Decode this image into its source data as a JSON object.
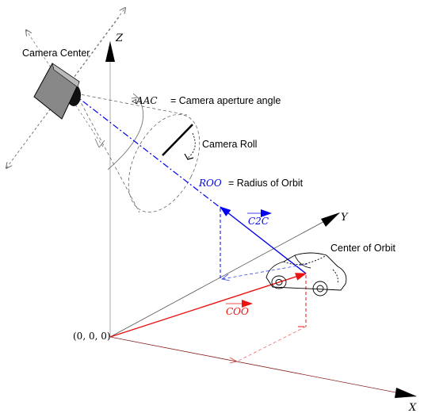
{
  "labels": {
    "camera_center": "Camera Center",
    "z_axis": "Z",
    "y_axis": "Y",
    "x_axis": "X",
    "aperture_symbol": "◃AAC",
    "aperture_text": "= Camera aperture angle",
    "camera_roll": "Camera Roll",
    "roo_symbol": "ROO",
    "roo_text": "= Radius of Orbit",
    "c2c_vector": "C2C",
    "coo_vector": "COO",
    "center_of_orbit": "Center of Orbit",
    "origin": "(0, 0, 0)"
  },
  "colors": {
    "axis": "#000000",
    "blue_vector": "#0000ee",
    "red_vector": "#ee1111",
    "guide": "#888888",
    "camera_body": "#777777"
  }
}
